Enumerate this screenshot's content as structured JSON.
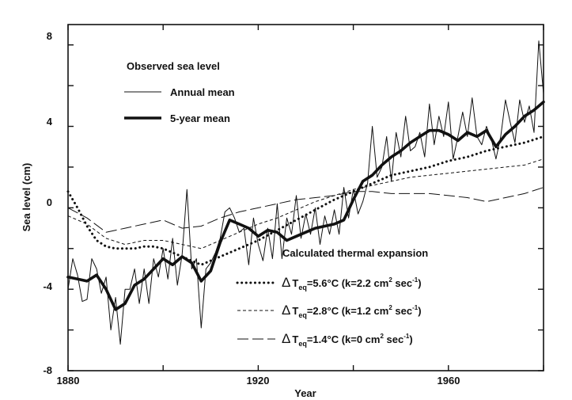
{
  "chart_data": {
    "type": "line",
    "xlabel": "Year",
    "ylabel": "Sea level (cm)",
    "xlim": [
      1880,
      1980
    ],
    "ylim": [
      -8,
      9
    ],
    "x_ticks": [
      "1880",
      "1920",
      "1960"
    ],
    "y_ticks": [
      "-8",
      "-4",
      "0",
      "4",
      "8"
    ],
    "legend_observed_title": "Observed sea level",
    "legend_calc_title": "Calculated thermal expansion",
    "series": [
      {
        "name": "Annual mean",
        "style": "thin",
        "x": [
          1880,
          1881,
          1882,
          1883,
          1884,
          1885,
          1886,
          1887,
          1888,
          1889,
          1890,
          1891,
          1892,
          1893,
          1894,
          1895,
          1896,
          1897,
          1898,
          1899,
          1900,
          1901,
          1902,
          1903,
          1904,
          1905,
          1906,
          1907,
          1908,
          1909,
          1910,
          1911,
          1912,
          1913,
          1914,
          1915,
          1916,
          1917,
          1918,
          1919,
          1920,
          1921,
          1922,
          1923,
          1924,
          1925,
          1926,
          1927,
          1928,
          1929,
          1930,
          1931,
          1932,
          1933,
          1934,
          1935,
          1936,
          1937,
          1938,
          1939,
          1940,
          1941,
          1942,
          1943,
          1944,
          1945,
          1946,
          1947,
          1948,
          1949,
          1950,
          1951,
          1952,
          1953,
          1954,
          1955,
          1956,
          1957,
          1958,
          1959,
          1960,
          1961,
          1962,
          1963,
          1964,
          1965,
          1966,
          1967,
          1968,
          1969,
          1970,
          1971,
          1972,
          1973,
          1974,
          1975,
          1976,
          1977,
          1978,
          1979,
          1980
        ],
        "y": [
          -4.0,
          -2.5,
          -3.3,
          -4.6,
          -4.5,
          -2.5,
          -3.0,
          -4.2,
          -3.4,
          -6.0,
          -4.4,
          -6.7,
          -4.0,
          -4.0,
          -3.0,
          -4.7,
          -3.0,
          -4.7,
          -2.5,
          -3.4,
          -2.0,
          -3.5,
          -1.5,
          -3.8,
          -2.3,
          0.9,
          -3.0,
          -2.5,
          -5.9,
          -3.0,
          -2.7,
          -2.2,
          -1.5,
          -0.2,
          0.0,
          -0.5,
          -1.2,
          -1.0,
          -2.8,
          -0.5,
          -1.8,
          -2.6,
          -1.0,
          -2.5,
          0.2,
          -2.5,
          -0.5,
          -1.3,
          0.6,
          -1.5,
          -0.3,
          -1.3,
          0.0,
          -1.8,
          -0.4,
          -1.3,
          -0.1,
          -1.3,
          1.0,
          -0.5,
          0.9,
          -0.3,
          0.3,
          1.2,
          4.0,
          1.5,
          2.0,
          3.5,
          1.3,
          3.7,
          2.5,
          4.5,
          2.8,
          3.0,
          3.7,
          2.5,
          5.1,
          3.1,
          4.5,
          3.5,
          5.2,
          2.4,
          3.5,
          4.7,
          3.5,
          5.4,
          3.5,
          3.1,
          4.0,
          3.4,
          2.4,
          3.5,
          5.3,
          4.2,
          3.2,
          5.3,
          4.2,
          5.0,
          3.7,
          8.2,
          5.6
        ]
      },
      {
        "name": "5-year mean",
        "style": "thick",
        "x": [
          1880,
          1882,
          1884,
          1886,
          1888,
          1890,
          1892,
          1894,
          1896,
          1898,
          1900,
          1902,
          1904,
          1906,
          1908,
          1910,
          1912,
          1914,
          1916,
          1918,
          1920,
          1922,
          1924,
          1926,
          1928,
          1930,
          1932,
          1934,
          1936,
          1938,
          1940,
          1942,
          1944,
          1946,
          1948,
          1950,
          1952,
          1954,
          1956,
          1958,
          1960,
          1962,
          1964,
          1966,
          1968,
          1970,
          1972,
          1974,
          1976,
          1978,
          1980
        ],
        "y": [
          -3.4,
          -3.5,
          -3.6,
          -3.3,
          -4.0,
          -5.0,
          -4.7,
          -3.8,
          -3.5,
          -3.0,
          -2.5,
          -2.8,
          -2.4,
          -2.7,
          -3.6,
          -3.1,
          -1.7,
          -0.6,
          -0.8,
          -1.0,
          -1.4,
          -1.1,
          -1.2,
          -1.6,
          -1.4,
          -1.2,
          -1.0,
          -0.9,
          -0.8,
          -0.6,
          0.4,
          1.3,
          1.6,
          2.1,
          2.5,
          2.8,
          3.2,
          3.5,
          3.8,
          3.8,
          3.6,
          3.3,
          3.7,
          3.5,
          3.8,
          3.0,
          3.6,
          4.0,
          4.5,
          4.8,
          5.2
        ]
      },
      {
        "name": "5.6°C (k=2.2 cm² sec⁻¹)",
        "style": "dotted",
        "x": [
          1880,
          1882,
          1884,
          1886,
          1888,
          1890,
          1892,
          1894,
          1896,
          1898,
          1900,
          1904,
          1908,
          1912,
          1916,
          1920,
          1924,
          1928,
          1932,
          1936,
          1940,
          1944,
          1948,
          1952,
          1956,
          1960,
          1964,
          1968,
          1972,
          1976,
          1980
        ],
        "y": [
          0.8,
          0.0,
          -0.9,
          -1.6,
          -1.9,
          -2.0,
          -2.0,
          -2.0,
          -1.9,
          -1.9,
          -2.0,
          -2.4,
          -2.8,
          -2.4,
          -2.0,
          -1.6,
          -1.1,
          -0.6,
          -0.1,
          0.4,
          0.8,
          1.2,
          1.6,
          1.8,
          2.0,
          2.3,
          2.5,
          2.8,
          3.0,
          3.2,
          3.5
        ]
      },
      {
        "name": "2.8°C (k=1.2 cm² sec⁻¹)",
        "style": "short-dash",
        "x": [
          1880,
          1884,
          1888,
          1892,
          1896,
          1900,
          1904,
          1908,
          1912,
          1916,
          1920,
          1924,
          1928,
          1932,
          1936,
          1940,
          1944,
          1948,
          1952,
          1956,
          1960,
          1964,
          1968,
          1972,
          1976,
          1980
        ],
        "y": [
          -0.4,
          -0.8,
          -1.5,
          -1.8,
          -1.6,
          -1.6,
          -1.8,
          -2.0,
          -1.6,
          -1.2,
          -0.8,
          -0.5,
          -0.1,
          0.3,
          0.6,
          0.9,
          1.1,
          1.3,
          1.5,
          1.6,
          1.7,
          1.8,
          1.9,
          2.0,
          2.1,
          2.4
        ]
      },
      {
        "name": "1.4°C (k=0 cm² sec⁻¹)",
        "style": "long-dash",
        "x": [
          1880,
          1884,
          1888,
          1892,
          1896,
          1900,
          1904,
          1908,
          1912,
          1916,
          1920,
          1924,
          1928,
          1932,
          1936,
          1940,
          1944,
          1948,
          1952,
          1956,
          1960,
          1964,
          1968,
          1972,
          1976,
          1980
        ],
        "y": [
          0.0,
          -0.5,
          -1.2,
          -1.0,
          -0.8,
          -0.6,
          -1.0,
          -0.9,
          -0.5,
          -0.2,
          0.0,
          0.2,
          0.4,
          0.5,
          0.6,
          0.8,
          0.8,
          0.7,
          0.7,
          0.7,
          0.6,
          0.5,
          0.3,
          0.5,
          0.7,
          1.0
        ]
      }
    ],
    "legend_entries": [
      {
        "series": 0,
        "label": "Annual mean"
      },
      {
        "series": 1,
        "label": "5-year mean"
      },
      {
        "series": 2,
        "delta": "Δ",
        "T": "T",
        "sub": "eq",
        "eq": "=5.6°C (k=2.2 cm",
        "sup1": "2",
        "mid": " sec",
        "sup2": "-1",
        "end": ")"
      },
      {
        "series": 3,
        "delta": "Δ",
        "T": "T",
        "sub": "eq",
        "eq": "=2.8°C (k=1.2 cm",
        "sup1": "2",
        "mid": " sec",
        "sup2": "-1",
        "end": ")"
      },
      {
        "series": 4,
        "delta": "Δ",
        "T": "T",
        "sub": "eq",
        "eq": "=1.4°C (k=0 cm",
        "sup1": "2",
        "mid": " sec",
        "sup2": "-1",
        "end": ")"
      }
    ]
  }
}
